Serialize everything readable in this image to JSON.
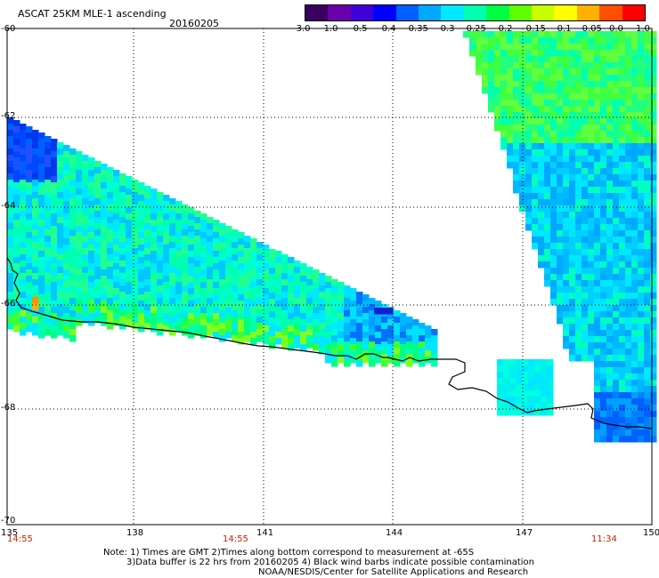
{
  "header": {
    "title": "ASCAT 25KM MLE-1 ascending",
    "date": "20160205"
  },
  "colorbar": {
    "labels": [
      "-3.0",
      "-1.0",
      "-0.5",
      "-0.4",
      "-0.35",
      "-0.3",
      "-0.25",
      "-0.2",
      "-0.15",
      "-0.1",
      "-0.05",
      "0.0",
      "1.0"
    ],
    "colors": [
      "#3a0060",
      "#6a00aa",
      "#4000d8",
      "#0000ff",
      "#0060ff",
      "#00a8ff",
      "#00e8ff",
      "#00ffb0",
      "#00ff40",
      "#60ff00",
      "#c8ff00",
      "#ffff00",
      "#ffb000",
      "#ff5000",
      "#ff0000"
    ]
  },
  "map": {
    "lat_labels": [
      "-60",
      "-62",
      "-64",
      "-66",
      "-68",
      "-70"
    ],
    "lon_labels": [
      "135",
      "138",
      "141",
      "144",
      "147",
      "150"
    ],
    "time_labels": [
      "14:55",
      "14:55",
      "11:34"
    ]
  },
  "notes": {
    "line1": "Note: 1) Times are GMT 2)Times along bottom correspond to measurement at -65S",
    "line2": "3)Data buffer is 22 hrs from 20160205 4) Black wind barbs indicate possible contamination",
    "line3": "NOAA/NESDIS/Center for Satellite Applications and Research"
  }
}
